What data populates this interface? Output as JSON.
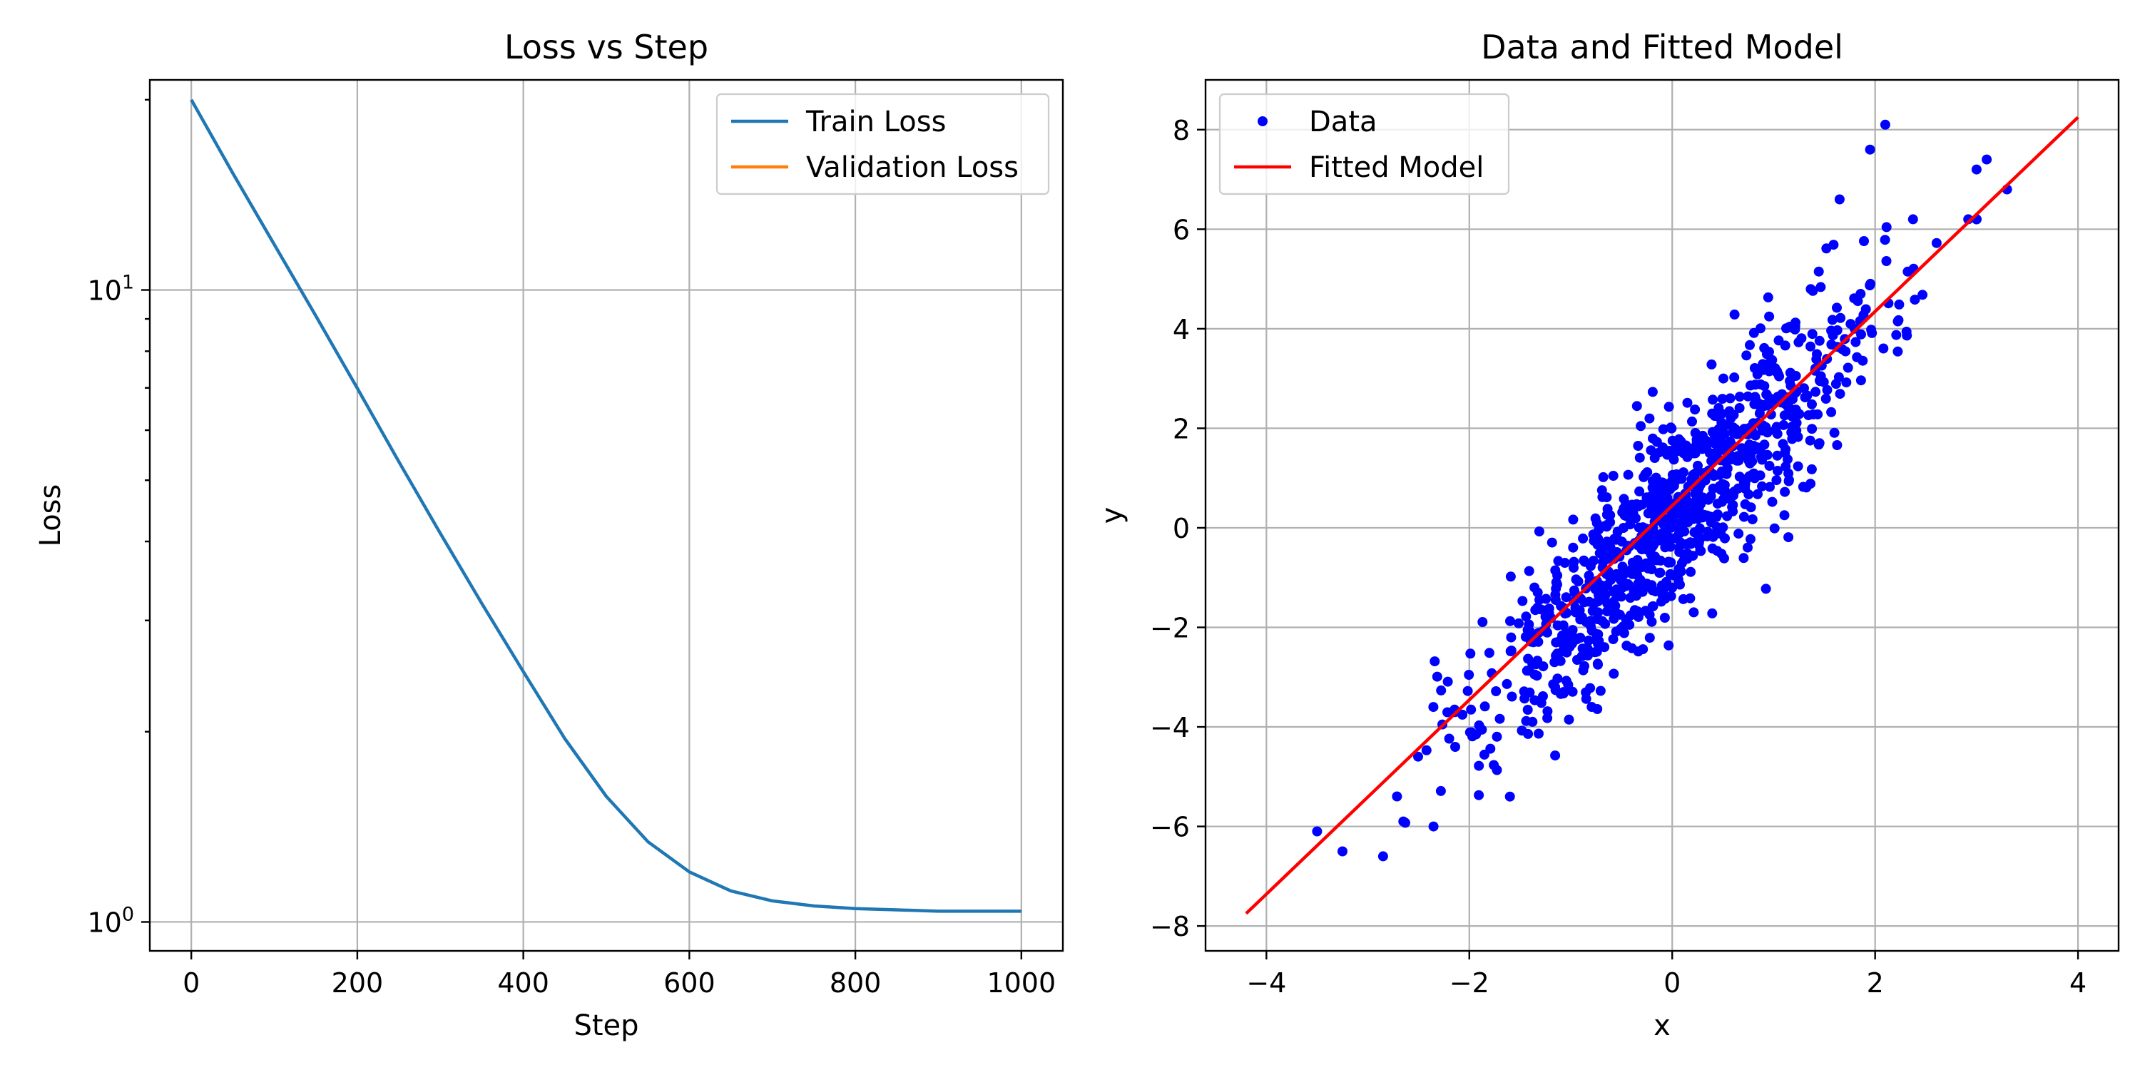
{
  "chart_data": [
    {
      "type": "line",
      "title": "Loss vs Step",
      "xlabel": "Step",
      "ylabel": "Loss",
      "yscale": "log",
      "xlim": [
        -50,
        1050
      ],
      "ylim": [
        0.9,
        21.5
      ],
      "grid": true,
      "legend_position": "top-right",
      "x_ticks": [
        0,
        200,
        400,
        600,
        800,
        1000
      ],
      "x_tick_labels": [
        "0",
        "200",
        "400",
        "600",
        "800",
        "1000"
      ],
      "y_ticks": [
        1,
        10
      ],
      "y_tick_labels": [
        {
          "base": "10",
          "exp": "0"
        },
        {
          "base": "10",
          "exp": "1"
        }
      ],
      "series": [
        {
          "name": "Train Loss",
          "color": "#1f77b4",
          "x": [
            0,
            50,
            100,
            150,
            200,
            250,
            300,
            350,
            400,
            450,
            500,
            550,
            600,
            650,
            700,
            750,
            800,
            850,
            900,
            950,
            1000
          ],
          "values": [
            20.0,
            15.3,
            11.8,
            9.1,
            6.99,
            5.35,
            4.12,
            3.19,
            2.49,
            1.95,
            1.58,
            1.34,
            1.2,
            1.12,
            1.08,
            1.06,
            1.05,
            1.045,
            1.04,
            1.04,
            1.04
          ]
        },
        {
          "name": "Validation Loss",
          "color": "#ff7f0e",
          "x": [],
          "values": []
        }
      ]
    },
    {
      "type": "scatter",
      "title": "Data and Fitted Model",
      "xlabel": "x",
      "ylabel": "y",
      "xlim": [
        -4.6,
        4.4
      ],
      "ylim": [
        -8.5,
        9.0
      ],
      "grid": true,
      "legend_position": "top-left",
      "x_ticks": [
        -4,
        -2,
        0,
        2,
        4
      ],
      "x_tick_labels": [
        "−4",
        "−2",
        "0",
        "2",
        "4"
      ],
      "y_ticks": [
        -8,
        -6,
        -4,
        -2,
        0,
        2,
        4,
        6,
        8
      ],
      "y_tick_labels": [
        "−8",
        "−6",
        "−4",
        "−2",
        "0",
        "2",
        "4",
        "6",
        "8"
      ],
      "series": [
        {
          "name": "Data",
          "type": "scatter",
          "color": "#0000ff",
          "point_count": 1000,
          "slope": 2.0,
          "intercept": 0.2,
          "noise_sd": 1.0,
          "extreme_points": [
            {
              "x": -3.5,
              "y": -6.1
            },
            {
              "x": -3.25,
              "y": -6.5
            },
            {
              "x": -2.85,
              "y": -6.6
            },
            {
              "x": -2.65,
              "y": -5.9
            },
            {
              "x": -1.6,
              "y": -5.4
            },
            {
              "x": 1.65,
              "y": 6.6
            },
            {
              "x": 1.95,
              "y": 7.6
            },
            {
              "x": 2.1,
              "y": 8.1
            },
            {
              "x": 3.0,
              "y": 7.2
            },
            {
              "x": 3.1,
              "y": 7.4
            },
            {
              "x": 3.3,
              "y": 6.8
            }
          ]
        },
        {
          "name": "Fitted Model",
          "type": "line",
          "color": "#ff0000",
          "x": [
            -4.2,
            4.0
          ],
          "values": [
            -7.75,
            8.25
          ]
        }
      ]
    }
  ]
}
